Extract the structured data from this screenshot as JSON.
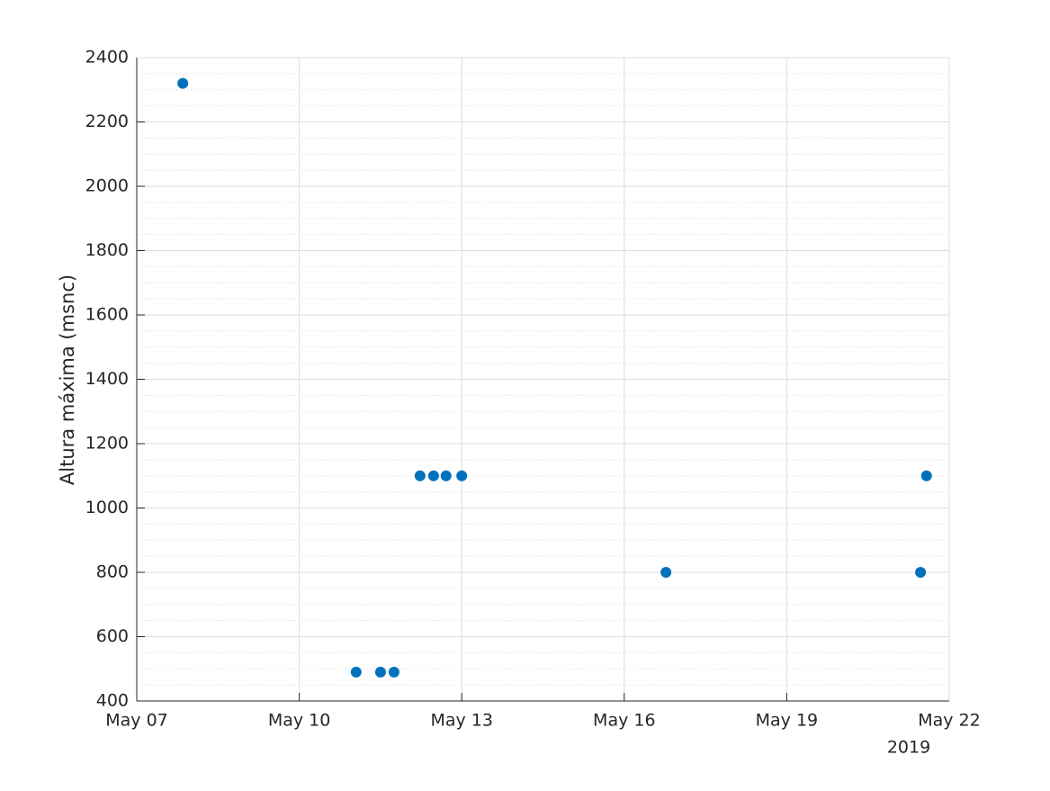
{
  "chart_data": {
    "type": "scatter",
    "y_label": "Altura máxima (msnc)",
    "x_secondary_label": "2019",
    "x": [
      7.85,
      11.05,
      11.5,
      11.75,
      12.23,
      12.48,
      12.71,
      13.0,
      16.77,
      21.47,
      21.58
    ],
    "series": [
      {
        "name": "Altura máxima",
        "color": "#0072bd",
        "values": [
          2320,
          490,
          490,
          490,
          1100,
          1100,
          1100,
          1100,
          800,
          800,
          1100
        ]
      }
    ],
    "xlim": [
      7,
      22
    ],
    "xticks": [
      {
        "value": 7,
        "label": "May 07"
      },
      {
        "value": 10,
        "label": "May 10"
      },
      {
        "value": 13,
        "label": "May 13"
      },
      {
        "value": 16,
        "label": "May 16"
      },
      {
        "value": 19,
        "label": "May 19"
      },
      {
        "value": 22,
        "label": "May 22"
      }
    ],
    "ylim": [
      400,
      2400
    ],
    "yticks": [
      400,
      600,
      800,
      1000,
      1200,
      1400,
      1600,
      1800,
      2000,
      2200,
      2400
    ],
    "grid": true,
    "minor_grid": true
  }
}
